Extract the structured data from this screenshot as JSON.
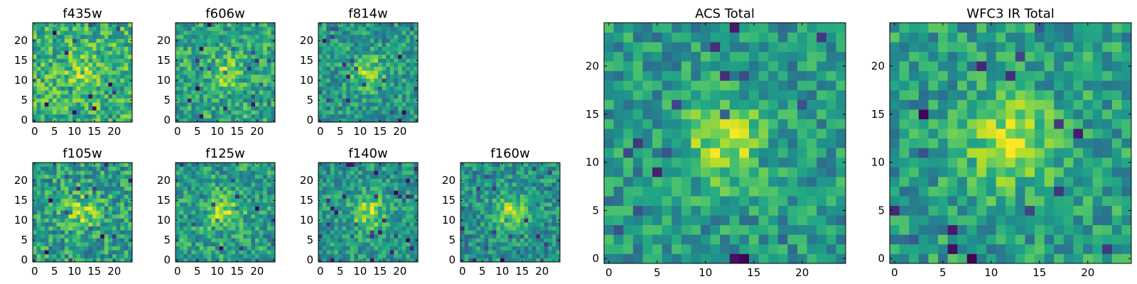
{
  "figure": {
    "type": "heatmap",
    "colormap": "viridis"
  },
  "chart_data": [
    {
      "type": "heatmap",
      "title": "f435w",
      "grid_size": [
        25,
        25
      ],
      "xlim": [
        0,
        24
      ],
      "ylim": [
        0,
        24
      ],
      "xticks": [
        "0",
        "5",
        "10",
        "15",
        "20"
      ],
      "yticks": [
        "0",
        "5",
        "10",
        "15",
        "20"
      ],
      "seed": 11,
      "peak": 0.2
    },
    {
      "type": "heatmap",
      "title": "f606w",
      "grid_size": [
        25,
        25
      ],
      "xlim": [
        0,
        24
      ],
      "ylim": [
        0,
        24
      ],
      "xticks": [
        "0",
        "5",
        "10",
        "15",
        "20"
      ],
      "yticks": [
        "0",
        "5",
        "10",
        "15",
        "20"
      ],
      "seed": 23,
      "peak": 0.3
    },
    {
      "type": "heatmap",
      "title": "f814w",
      "grid_size": [
        25,
        25
      ],
      "xlim": [
        0,
        24
      ],
      "ylim": [
        0,
        24
      ],
      "xticks": [
        "0",
        "5",
        "10",
        "15",
        "20"
      ],
      "yticks": [
        "0",
        "5",
        "10",
        "15",
        "20"
      ],
      "seed": 37,
      "peak": 0.45
    },
    {
      "type": "heatmap",
      "title": "f105w",
      "grid_size": [
        25,
        25
      ],
      "xlim": [
        0,
        24
      ],
      "ylim": [
        0,
        24
      ],
      "xticks": [
        "0",
        "5",
        "10",
        "15",
        "20"
      ],
      "yticks": [
        "0",
        "5",
        "10",
        "15",
        "20"
      ],
      "seed": 41,
      "peak": 0.35
    },
    {
      "type": "heatmap",
      "title": "f125w",
      "grid_size": [
        25,
        25
      ],
      "xlim": [
        0,
        24
      ],
      "ylim": [
        0,
        24
      ],
      "xticks": [
        "0",
        "5",
        "10",
        "15",
        "20"
      ],
      "yticks": [
        "0",
        "5",
        "10",
        "15",
        "20"
      ],
      "seed": 53,
      "peak": 0.4
    },
    {
      "type": "heatmap",
      "title": "f140w",
      "grid_size": [
        25,
        25
      ],
      "xlim": [
        0,
        24
      ],
      "ylim": [
        0,
        24
      ],
      "xticks": [
        "0",
        "5",
        "10",
        "15",
        "20"
      ],
      "yticks": [
        "0",
        "5",
        "10",
        "15",
        "20"
      ],
      "seed": 67,
      "peak": 0.5
    },
    {
      "type": "heatmap",
      "title": "f160w",
      "grid_size": [
        25,
        25
      ],
      "xlim": [
        0,
        24
      ],
      "ylim": [
        0,
        24
      ],
      "xticks": [
        "0",
        "5",
        "10",
        "15",
        "20"
      ],
      "yticks": [
        "0",
        "5",
        "10",
        "15",
        "20"
      ],
      "seed": 79,
      "peak": 0.55
    },
    {
      "type": "heatmap",
      "title": "ACS Total",
      "grid_size": [
        25,
        25
      ],
      "xlim": [
        0,
        24
      ],
      "ylim": [
        0,
        24
      ],
      "xticks": [
        "0",
        "5",
        "10",
        "15",
        "20"
      ],
      "yticks": [
        "0",
        "5",
        "10",
        "15",
        "20"
      ],
      "seed": 97,
      "peak": 0.55
    },
    {
      "type": "heatmap",
      "title": "WFC3 IR Total",
      "grid_size": [
        25,
        25
      ],
      "xlim": [
        0,
        24
      ],
      "ylim": [
        0,
        24
      ],
      "xticks": [
        "0",
        "5",
        "10",
        "15",
        "20"
      ],
      "yticks": [
        "0",
        "5",
        "10",
        "15",
        "20"
      ],
      "seed": 113,
      "peak": 0.6
    }
  ]
}
